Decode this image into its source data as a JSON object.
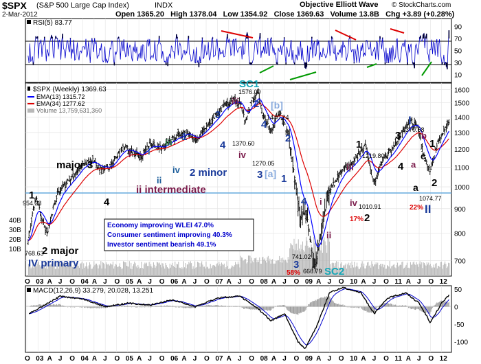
{
  "header": {
    "symbol": "$SPX",
    "name": "(S&P 500 Large Cap Index)",
    "exchange": "INDX",
    "date": "2-Mar-2012",
    "open_label": "Open",
    "open": "1365.20",
    "high_label": "High",
    "high": "1378.04",
    "low_label": "Low",
    "low": "1354.92",
    "close_label": "Close",
    "close": "1369.63",
    "volume_label": "Volume",
    "volume": "13.8B",
    "chg_label": "Chg",
    "chg": "+3.89 (+0.28%)",
    "brand": "Objective Elliott Wave",
    "watermark": "© StockCharts.com"
  },
  "rsi": {
    "legend": "RSI(5) 83.77",
    "ticks": [
      "90",
      "70",
      "50",
      "30",
      "10"
    ],
    "colors": {
      "line": "#0000cc",
      "fill": "#000033",
      "red": "#dd0000",
      "green": "#009900"
    }
  },
  "price": {
    "legend_title": "$SPX (Weekly) 1369.63",
    "legend_ema13": "EMA(13) 1315.72",
    "legend_ema34": "EMA(34) 1277.62",
    "legend_volume": "Volume 13,759,631,360",
    "ticks": [
      "1600",
      "1500",
      "1400",
      "1300",
      "1200",
      "1100",
      "1000",
      "900",
      "800",
      "700"
    ],
    "volume_ticks": [
      "40B",
      "30B",
      "20B",
      "10B"
    ],
    "colors": {
      "ema13": "#0000ff",
      "ema34": "#dd0000",
      "hline": "#66aadd",
      "volume": "#b8b8b8"
    }
  },
  "annotations": {
    "sc1": "SC1",
    "sc2": "SC2",
    "iii_2007": "iii",
    "two_2007": "2",
    "b_bracket": "[b]",
    "p1576": "1576.09",
    "p1440": "1440.24",
    "p1370_60": "1370.60",
    "p1270": "1270.05",
    "four_a": "4",
    "iv_2008": "iv",
    "three_a": "3",
    "a_bracket": "[a]",
    "two_2008": "2",
    "one_2008": "1",
    "four_2009": "4",
    "p741": "741.02",
    "p666": "666.79",
    "three_2009": "3",
    "pct58": "58%",
    "i_2009": "i",
    "ii_2009": "ii",
    "one_2010": "1",
    "p1219": "1219.80",
    "iii_2010": "iii",
    "p1010": "1010.91",
    "iv_2010": "iv",
    "pct17": "17%",
    "two_2010": "2",
    "I_2011": "I",
    "p1370_58": "1370.58",
    "three_2011": "3",
    "b_2011": "b",
    "four_2011": "4",
    "a_2011": "a",
    "c_2011": "c",
    "one_2011": "1",
    "a2_2011": "a",
    "p1074": "1074.77",
    "two_2011": "2",
    "pct22": "22%",
    "II_2011": "II",
    "major3": "major 3",
    "four_2004": "4",
    "i_2005": "i",
    "i2_2005": "i",
    "iii_2005": "iii",
    "one_2006": "1",
    "ii_2005": "ii",
    "iv_2006": "iv",
    "two_minor": "2 minor",
    "three_2006": "3",
    "four_2006": "4",
    "ii_intermediate": "ii intermediate",
    "one_2003": "1",
    "p954": "954.28",
    "p768": "768.63",
    "two_major": "2 major",
    "iv_primary": "IV primary"
  },
  "info_box": {
    "line1": "Economy improving WLEI 47.0%",
    "line2": "Consumer sentiment improving 40.3%",
    "line3": "Investor sentiment bearish 49.1%"
  },
  "x_axis": {
    "labels": [
      "O",
      "03",
      "A",
      "J",
      "O",
      "04",
      "A",
      "J",
      "O",
      "05",
      "A",
      "J",
      "O",
      "06",
      "A",
      "J",
      "O",
      "07",
      "A",
      "J",
      "O",
      "08",
      "A",
      "J",
      "O",
      "09",
      "A",
      "J",
      "O",
      "10",
      "A",
      "J",
      "O",
      "11",
      "A",
      "J",
      "O",
      "12"
    ]
  },
  "macd": {
    "legend": "MACD(12,26,9) 33.279, 20.028, 13.251",
    "ticks": [
      "50",
      "0",
      "-50",
      "-100"
    ],
    "colors": {
      "macd": "#000000",
      "signal": "#0000cc",
      "hist": "#999999"
    }
  },
  "chart_data": [
    {
      "type": "line",
      "title": "$SPX (S&P 500 Large Cap Index) Weekly",
      "xlabel": "",
      "ylabel": "",
      "x_range": [
        "2002-10",
        "2012-03"
      ],
      "ylim": [
        650,
        1650
      ],
      "series": [
        {
          "name": "$SPX close",
          "x": [
            2002.78,
            2002.95,
            2003.05,
            2003.2,
            2003.45,
            2003.7,
            2004.0,
            2004.2,
            2004.4,
            2004.6,
            2004.9,
            2005.1,
            2005.3,
            2005.5,
            2005.8,
            2006.1,
            2006.35,
            2006.5,
            2006.75,
            2007.0,
            2007.15,
            2007.4,
            2007.55,
            2007.62,
            2007.78,
            2007.9,
            2008.0,
            2008.2,
            2008.38,
            2008.6,
            2008.75,
            2008.85,
            2008.97,
            2009.1,
            2009.18,
            2009.4,
            2009.55,
            2009.8,
            2010.0,
            2010.3,
            2010.5,
            2010.65,
            2010.9,
            2011.15,
            2011.33,
            2011.5,
            2011.6,
            2011.75,
            2011.9,
            2012.05,
            2012.17
          ],
          "values": [
            768.63,
            954.28,
            880,
            800,
            980,
            1030,
            1120,
            1140,
            1090,
            1100,
            1210,
            1190,
            1160,
            1230,
            1210,
            1280,
            1300,
            1250,
            1340,
            1420,
            1480,
            1530,
            1470,
            1370.6,
            1520,
            1576.09,
            1420,
            1300,
            1440.24,
            1270.05,
            1000,
            850,
            900,
            741.02,
            666.79,
            900,
            1000,
            1090,
            1120,
            1219.8,
            1010.91,
            1120,
            1200,
            1320,
            1370.58,
            1320,
            1150,
            1074.77,
            1230,
            1310,
            1369.63
          ]
        },
        {
          "name": "EMA(13)",
          "last": 1315.72
        },
        {
          "name": "EMA(34)",
          "last": 1277.62
        }
      ]
    },
    {
      "type": "line",
      "title": "RSI(5)",
      "ylim": [
        0,
        100
      ],
      "series": [
        {
          "name": "RSI(5)",
          "last": 83.77
        }
      ]
    },
    {
      "type": "line",
      "title": "MACD(12,26,9)",
      "ylim": [
        -130,
        60
      ],
      "series": [
        {
          "name": "MACD",
          "x": [
            2002.8,
            2003.5,
            2004.0,
            2004.5,
            2005.0,
            2005.5,
            2006.0,
            2006.5,
            2007.0,
            2007.5,
            2007.9,
            2008.2,
            2008.5,
            2008.8,
            2008.95,
            2009.2,
            2009.5,
            2009.8,
            2010.2,
            2010.5,
            2010.8,
            2011.2,
            2011.5,
            2011.75,
            2012.0,
            2012.17
          ],
          "values": [
            -20,
            30,
            22,
            0,
            10,
            5,
            20,
            0,
            25,
            30,
            -5,
            -40,
            -20,
            -100,
            -120,
            -60,
            40,
            55,
            40,
            -20,
            25,
            40,
            10,
            -45,
            10,
            33.279
          ]
        },
        {
          "name": "Signal",
          "last": 20.028
        },
        {
          "name": "Histogram",
          "last": 13.251
        }
      ]
    }
  ]
}
